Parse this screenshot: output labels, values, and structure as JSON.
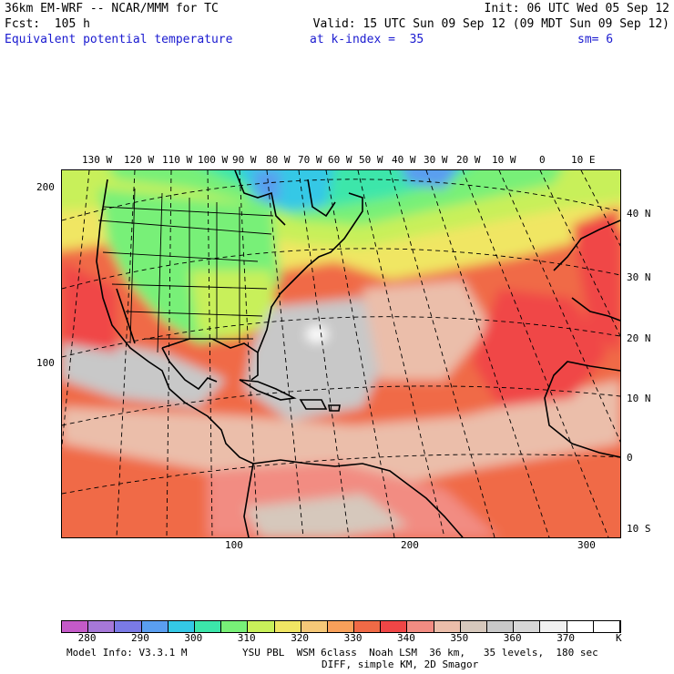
{
  "header": {
    "model": "36km EM-WRF -- NCAR/MMM for TC",
    "init": "Init: 06 UTC Wed 05 Sep 12",
    "fcst": "Fcst:  105 h",
    "valid": "Valid: 15 UTC Sun 09 Sep 12 (09 MDT Sun 09 Sep 12)",
    "field": "Equivalent potential temperature",
    "level": "at k-index =  35",
    "smooth": "sm= 6"
  },
  "map": {
    "lon_labels": [
      "130 W",
      "120 W",
      "110 W",
      "100 W",
      "90 W",
      "80 W",
      "70 W",
      "60 W",
      "50 W",
      "40 W",
      "30 W",
      "20 W",
      "10 W",
      "0",
      "10 E"
    ],
    "lat_labels": [
      "40 N",
      "30 N",
      "20 N",
      "10 N",
      "0",
      "10 S"
    ],
    "left_ticks": [
      "200",
      "100"
    ],
    "bottom_ticks": [
      "100",
      "200",
      "300"
    ]
  },
  "colorbar": {
    "colors": [
      "#c45ac8",
      "#a678d8",
      "#7a7ae6",
      "#5a9ef0",
      "#34c8e6",
      "#3ce6aa",
      "#78f078",
      "#c8f05a",
      "#f0e664",
      "#f5c878",
      "#f8a05a",
      "#f06a46",
      "#f04646",
      "#f28c82",
      "#ebbeaa",
      "#d6c8bc",
      "#c8c8c8",
      "#d7d7d7",
      "#f0f0f0",
      "#ffffff",
      "#ffffff"
    ],
    "labels": [
      "280",
      "290",
      "300",
      "310",
      "320",
      "330",
      "340",
      "350",
      "360",
      "370"
    ],
    "unit": "K"
  },
  "footer": {
    "model_info": "Model Info: V3.3.1 M",
    "physics": "YSU PBL  WSM 6class  Noah LSM  36 km,   35 levels,  180 sec",
    "diff": "DIFF, simple KM, 2D Smagor"
  }
}
